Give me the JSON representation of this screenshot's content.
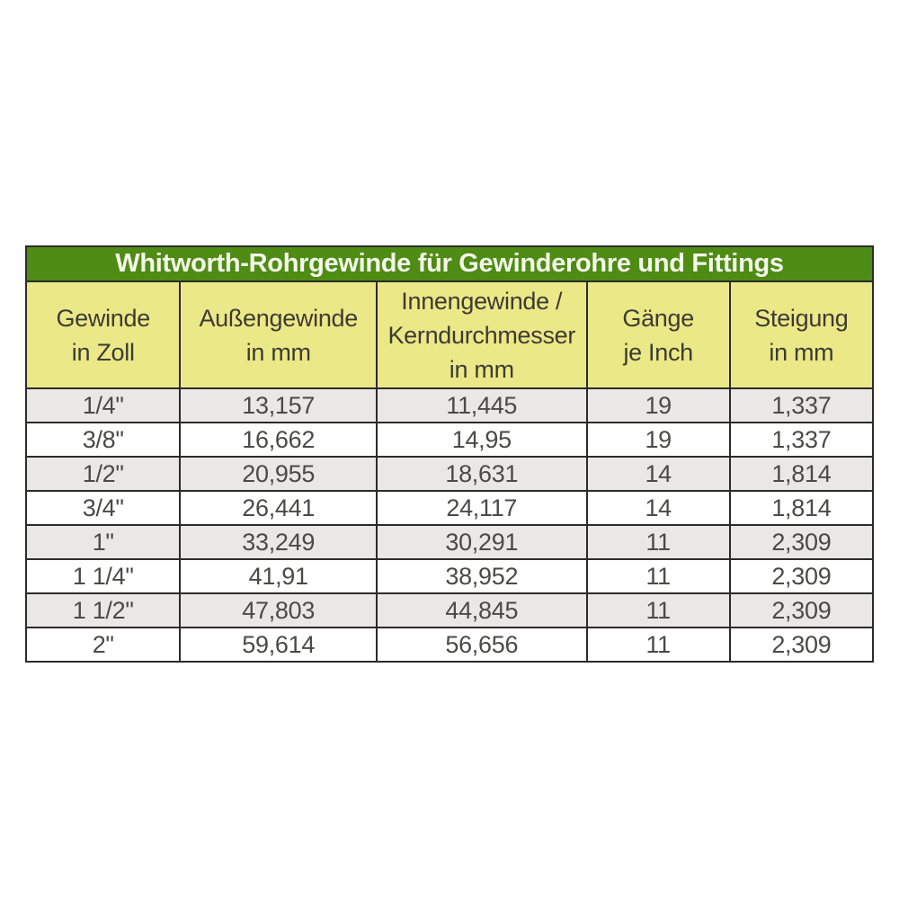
{
  "theme": {
    "page-bg": "#ffffff",
    "green": "#4e8c14",
    "yellow": "#ebe888",
    "row-gray": "#e9e8e5",
    "row-white": "#ffffff",
    "border": "#2b2b2b",
    "title-text": "#f5f8ec",
    "header-text": "#3c3c32",
    "cell-text": "#4a4a48"
  },
  "table": {
    "title": "Whitworth-Rohrgewinde für Gewinderohre und Fittings",
    "headers": [
      "Gewinde\nin Zoll",
      "Außengewinde\nin mm",
      "Innengewinde /\nKerndurchmesser\nin mm",
      "Gänge\nje Inch",
      "Steigung\nin mm"
    ]
  },
  "chart_data": {
    "type": "table",
    "title": "Whitworth-Rohrgewinde für Gewinderohre und Fittings",
    "columns": [
      "Gewinde in Zoll",
      "Außengewinde in mm",
      "Innengewinde / Kerndurchmesser in mm",
      "Gänge je Inch",
      "Steigung in mm"
    ],
    "rows": [
      [
        "1/4\"",
        "13,157",
        "11,445",
        "19",
        "1,337"
      ],
      [
        "3/8\"",
        "16,662",
        "14,95",
        "19",
        "1,337"
      ],
      [
        "1/2\"",
        "20,955",
        "18,631",
        "14",
        "1,814"
      ],
      [
        "3/4\"",
        "26,441",
        "24,117",
        "14",
        "1,814"
      ],
      [
        "1\"",
        "33,249",
        "30,291",
        "11",
        "2,309"
      ],
      [
        "1 1/4\"",
        "41,91",
        "38,952",
        "11",
        "2,309"
      ],
      [
        "1 1/2\"",
        "47,803",
        "44,845",
        "11",
        "2,309"
      ],
      [
        "2\"",
        "59,614",
        "56,656",
        "11",
        "2,309"
      ]
    ]
  }
}
